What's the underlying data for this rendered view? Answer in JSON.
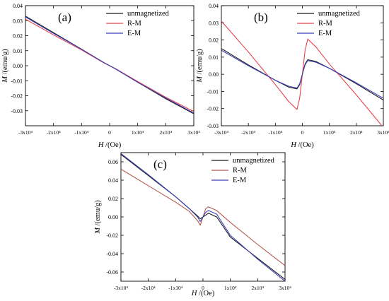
{
  "chart_data": [
    {
      "panel_label": "(a)",
      "type": "line",
      "xlabel": "H /(Oe)",
      "ylabel": "M /(emu/g)",
      "xlim": [
        -30000,
        30000
      ],
      "ylim": [
        -0.04,
        0.04
      ],
      "x_ticks": [
        -30000,
        -20000,
        -10000,
        0,
        10000,
        20000,
        30000
      ],
      "x_tick_labels": [
        "-3x10⁴",
        "-2x10⁴",
        "-1x10⁴",
        "0",
        "1x10⁴",
        "2x10⁴",
        "3x10⁴"
      ],
      "y_ticks": [
        -0.03,
        -0.02,
        -0.01,
        0.0,
        0.01,
        0.02,
        0.03,
        0.04
      ],
      "y_tick_labels": [
        "-0.03",
        "-0.02",
        "-0.01",
        "0.00",
        "0.01",
        "0.02",
        "0.03",
        "0.04"
      ],
      "legend_position": "top-right",
      "series": [
        {
          "name": "unmagnetized",
          "color": "#1a1a1a",
          "x": [
            -30000,
            -20000,
            -10000,
            -2000,
            0,
            2000,
            10000,
            20000,
            30000
          ],
          "y": [
            0.033,
            0.022,
            0.011,
            0.002,
            0.0,
            -0.002,
            -0.011,
            -0.022,
            -0.032
          ]
        },
        {
          "name": "R-M",
          "color": "#e8414b",
          "x": [
            -30000,
            -20000,
            -10000,
            -2000,
            0,
            2000,
            10000,
            20000,
            30000
          ],
          "y": [
            0.031,
            0.0205,
            0.0105,
            0.0018,
            0.0,
            -0.0018,
            -0.0105,
            -0.021,
            -0.0305
          ]
        },
        {
          "name": "E-M",
          "color": "#3b3fb8",
          "x": [
            -30000,
            -20000,
            -10000,
            -2000,
            0,
            2000,
            10000,
            20000,
            30000
          ],
          "y": [
            0.0325,
            0.0215,
            0.011,
            0.002,
            0.0,
            -0.002,
            -0.011,
            -0.0215,
            -0.0315
          ]
        }
      ]
    },
    {
      "panel_label": "(b)",
      "type": "line",
      "xlabel": "H /(Oe)",
      "ylabel": "M /(emu/g)",
      "xlim": [
        -30000,
        30000
      ],
      "ylim": [
        -0.03,
        0.04
      ],
      "x_ticks": [
        -30000,
        -20000,
        -10000,
        0,
        10000,
        20000,
        30000
      ],
      "x_tick_labels": [
        "-3x10⁴",
        "-2x10⁴",
        "-1x10⁴",
        "0",
        "1x10⁴",
        "2x10⁴",
        "3x10⁴"
      ],
      "y_ticks": [
        -0.03,
        -0.02,
        -0.01,
        0.0,
        0.01,
        0.02,
        0.03,
        0.04
      ],
      "y_tick_labels": [
        "-0.03",
        "-0.02",
        "-0.01",
        "0.00",
        "0.01",
        "0.02",
        "0.03",
        "0.04"
      ],
      "legend_position": "top-right",
      "series": [
        {
          "name": "unmagnetized",
          "color": "#1a1a1a",
          "x": [
            -30000,
            -20000,
            -10000,
            -5000,
            -2000,
            -1000,
            0,
            1000,
            2000,
            5000,
            10000,
            20000,
            30000
          ],
          "y": [
            0.015,
            0.0055,
            -0.0035,
            -0.0075,
            -0.0085,
            -0.006,
            0.0,
            0.006,
            0.0085,
            0.0075,
            0.0035,
            -0.0055,
            -0.015
          ]
        },
        {
          "name": "R-M",
          "color": "#e8414b",
          "x": [
            -30000,
            -20000,
            -10000,
            -5000,
            -2000,
            -1000,
            0,
            1000,
            2000,
            5000,
            10000,
            20000,
            30000
          ],
          "y": [
            0.031,
            0.013,
            -0.006,
            -0.016,
            -0.0205,
            -0.014,
            0.0,
            0.014,
            0.0205,
            0.016,
            0.006,
            -0.012,
            -0.031
          ]
        },
        {
          "name": "E-M",
          "color": "#3b3fb8",
          "x": [
            -30000,
            -20000,
            -10000,
            -5000,
            -2000,
            -1000,
            0,
            1000,
            2000,
            5000,
            10000,
            20000,
            30000
          ],
          "y": [
            0.014,
            0.005,
            -0.0035,
            -0.007,
            -0.008,
            -0.0055,
            0.0,
            0.0055,
            0.008,
            0.007,
            0.0035,
            -0.005,
            -0.014
          ]
        }
      ]
    },
    {
      "panel_label": "(c)",
      "type": "line",
      "xlabel": "H /(Oe)",
      "ylabel": "M /(emu/g)",
      "xlim": [
        -30000,
        30000
      ],
      "ylim": [
        -0.07,
        0.07
      ],
      "x_ticks": [
        -30000,
        -20000,
        -10000,
        0,
        10000,
        20000,
        30000
      ],
      "x_tick_labels": [
        "-3x10⁴",
        "-2x10⁴",
        "-1x10⁴",
        "0",
        "1x10⁴",
        "2x10⁴",
        "3x10⁴"
      ],
      "y_ticks": [
        -0.06,
        -0.04,
        -0.02,
        0.0,
        0.02,
        0.04,
        0.06
      ],
      "y_tick_labels": [
        "-0.06",
        "-0.04",
        "-0.02",
        "0.00",
        "0.02",
        "0.04",
        "0.06"
      ],
      "legend_position": "top-right",
      "series": [
        {
          "name": "unmagnetized",
          "color": "#1a1a1a",
          "x": [
            -30000,
            -20000,
            -10000,
            -5000,
            -2000,
            -1000,
            0,
            1000,
            2000,
            5000,
            10000,
            20000,
            30000
          ],
          "y": [
            0.068,
            0.045,
            0.022,
            0.009,
            0.001,
            -0.002,
            0.0,
            0.002,
            0.004,
            0.0,
            -0.022,
            -0.045,
            -0.068
          ]
        },
        {
          "name": "R-M",
          "color": "#b5574f",
          "x": [
            -30000,
            -20000,
            -10000,
            -5000,
            -2000,
            -1000,
            0,
            1000,
            2000,
            5000,
            10000,
            20000,
            30000
          ],
          "y": [
            0.052,
            0.034,
            0.016,
            0.006,
            -0.004,
            -0.009,
            0.0,
            0.009,
            0.011,
            0.007,
            -0.006,
            -0.03,
            -0.053
          ]
        },
        {
          "name": "E-M",
          "color": "#3b3fb8",
          "x": [
            -30000,
            -20000,
            -10000,
            -5000,
            -2000,
            -1000,
            0,
            1000,
            2000,
            5000,
            10000,
            20000,
            30000
          ],
          "y": [
            0.069,
            0.046,
            0.022,
            0.009,
            0.0,
            -0.005,
            0.0,
            0.005,
            0.007,
            0.003,
            -0.02,
            -0.046,
            -0.07
          ]
        }
      ]
    }
  ]
}
